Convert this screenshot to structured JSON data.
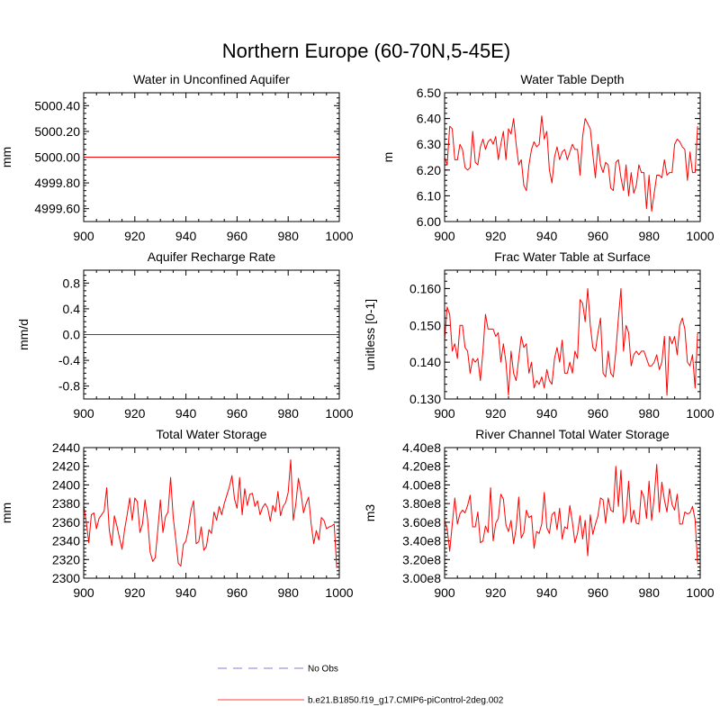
{
  "figure": {
    "title": "Northern Europe (60-70N,5-45E)"
  },
  "colors": {
    "series": "#ff0000",
    "obs": "#9999dd",
    "axis": "#000000"
  },
  "legend": {
    "entries": [
      {
        "label": "No Obs",
        "style": "dashed"
      },
      {
        "label": "b.e21.B1850.f19_g17.CMIP6-piControl-2deg.002",
        "style": "solid"
      }
    ]
  },
  "chart_data": [
    {
      "type": "line",
      "title": "Water in Unconfined Aquifer",
      "xlabel": "",
      "ylabel": "mm",
      "xlim": [
        900,
        1000
      ],
      "ylim": [
        4999.5,
        5000.5
      ],
      "xticks": [
        "900",
        "920",
        "940",
        "960",
        "980",
        "1000"
      ],
      "yticks": [
        "4999.60",
        "4999.80",
        "5000.00",
        "5000.20",
        "5000.40"
      ],
      "ytick_values": [
        4999.6,
        4999.8,
        5000.0,
        5000.2,
        5000.4
      ],
      "x_start": 900,
      "series": [
        {
          "name": "b.e21.B1850.f19_g17.CMIP6-piControl-2deg.002",
          "constant": 5000.0,
          "x_end": 1000
        }
      ]
    },
    {
      "type": "line",
      "title": "Water Table Depth",
      "xlabel": "",
      "ylabel": "m",
      "xlim": [
        900,
        1000
      ],
      "ylim": [
        6.0,
        6.5
      ],
      "xticks": [
        "900",
        "920",
        "940",
        "960",
        "980",
        "1000"
      ],
      "yticks": [
        "6.00",
        "6.10",
        "6.20",
        "6.30",
        "6.40",
        "6.50"
      ],
      "ytick_values": [
        6.0,
        6.1,
        6.2,
        6.3,
        6.4,
        6.5
      ],
      "x_start": 900,
      "series": [
        {
          "name": "b.e21.B1850.f19_g17.CMIP6-piControl-2deg.002",
          "values": [
            6.25,
            6.22,
            6.37,
            6.36,
            6.24,
            6.24,
            6.3,
            6.28,
            6.21,
            6.2,
            6.21,
            6.35,
            6.23,
            6.22,
            6.29,
            6.32,
            6.28,
            6.31,
            6.32,
            6.3,
            6.33,
            6.24,
            6.3,
            6.35,
            6.24,
            6.36,
            6.34,
            6.4,
            6.3,
            6.22,
            6.24,
            6.14,
            6.12,
            6.22,
            6.28,
            6.31,
            6.29,
            6.3,
            6.41,
            6.32,
            6.35,
            6.2,
            6.15,
            6.25,
            6.29,
            6.24,
            6.27,
            6.28,
            6.24,
            6.27,
            6.3,
            6.28,
            6.28,
            6.18,
            6.33,
            6.4,
            6.38,
            6.36,
            6.26,
            6.17,
            6.3,
            6.22,
            6.19,
            6.23,
            6.22,
            6.13,
            6.12,
            6.23,
            6.24,
            6.17,
            6.12,
            6.22,
            6.1,
            6.19,
            6.11,
            6.14,
            6.22,
            6.19,
            6.19,
            6.05,
            6.18,
            6.04,
            6.11,
            6.18,
            6.18,
            6.17,
            6.24,
            6.18,
            6.19,
            6.19,
            6.3,
            6.32,
            6.31,
            6.29,
            6.28,
            6.16,
            6.27,
            6.19,
            6.19,
            6.37
          ]
        }
      ]
    },
    {
      "type": "line",
      "title": "Aquifer Recharge Rate",
      "xlabel": "",
      "ylabel": "mm/d",
      "xlim": [
        900,
        1000
      ],
      "ylim": [
        -1.0,
        1.0
      ],
      "xticks": [
        "900",
        "920",
        "940",
        "960",
        "980",
        "1000"
      ],
      "yticks": [
        "-0.8",
        "-0.4",
        "0.0",
        "0.4",
        "0.8"
      ],
      "ytick_values": [
        -0.8,
        -0.4,
        0.0,
        0.4,
        0.8
      ],
      "x_start": 900,
      "series": [
        {
          "name": "b.e21.B1850.f19_g17.CMIP6-piControl-2deg.002",
          "constant": 0.0,
          "x_end": 1000
        }
      ]
    },
    {
      "type": "line",
      "title": "Frac Water Table at Surface",
      "xlabel": "",
      "ylabel": "unitless [0-1]",
      "xlim": [
        900,
        1000
      ],
      "ylim": [
        0.13,
        0.165
      ],
      "xticks": [
        "900",
        "920",
        "940",
        "960",
        "980",
        "1000"
      ],
      "yticks": [
        "0.130",
        "0.140",
        "0.150",
        "0.160"
      ],
      "ytick_values": [
        0.13,
        0.14,
        0.15,
        0.16
      ],
      "x_start": 900,
      "series": [
        {
          "name": "b.e21.B1850.f19_g17.CMIP6-piControl-2deg.002",
          "values": [
            0.146,
            0.155,
            0.153,
            0.143,
            0.145,
            0.141,
            0.15,
            0.15,
            0.144,
            0.143,
            0.137,
            0.141,
            0.14,
            0.141,
            0.135,
            0.143,
            0.153,
            0.149,
            0.149,
            0.149,
            0.147,
            0.148,
            0.14,
            0.145,
            0.14,
            0.131,
            0.143,
            0.137,
            0.135,
            0.141,
            0.147,
            0.144,
            0.145,
            0.137,
            0.14,
            0.133,
            0.135,
            0.134,
            0.136,
            0.133,
            0.138,
            0.135,
            0.134,
            0.141,
            0.144,
            0.14,
            0.146,
            0.137,
            0.137,
            0.14,
            0.137,
            0.143,
            0.141,
            0.157,
            0.156,
            0.151,
            0.16,
            0.15,
            0.144,
            0.143,
            0.148,
            0.152,
            0.137,
            0.136,
            0.143,
            0.137,
            0.136,
            0.143,
            0.152,
            0.16,
            0.143,
            0.15,
            0.148,
            0.139,
            0.142,
            0.143,
            0.142,
            0.143,
            0.143,
            0.141,
            0.139,
            0.139,
            0.14,
            0.142,
            0.138,
            0.14,
            0.147,
            0.131,
            0.147,
            0.145,
            0.147,
            0.142,
            0.15,
            0.152,
            0.149,
            0.14,
            0.139,
            0.142,
            0.133,
            0.148
          ]
        }
      ]
    },
    {
      "type": "line",
      "title": "Total Water Storage",
      "xlabel": "",
      "ylabel": "mm",
      "xlim": [
        900,
        1000
      ],
      "ylim": [
        2300,
        2440
      ],
      "xticks": [
        "900",
        "920",
        "940",
        "960",
        "980",
        "1000"
      ],
      "yticks": [
        "2300",
        "2320",
        "2340",
        "2360",
        "2380",
        "2400",
        "2420",
        "2440"
      ],
      "ytick_values": [
        2300,
        2320,
        2340,
        2360,
        2380,
        2400,
        2420,
        2440
      ],
      "x_start": 900,
      "series": [
        {
          "name": "b.e21.B1850.f19_g17.CMIP6-piControl-2deg.002",
          "values": [
            2378,
            2360,
            2338,
            2368,
            2370,
            2353,
            2364,
            2368,
            2372,
            2397,
            2352,
            2335,
            2367,
            2356,
            2343,
            2331,
            2352,
            2368,
            2386,
            2362,
            2386,
            2382,
            2349,
            2358,
            2384,
            2363,
            2328,
            2318,
            2322,
            2352,
            2384,
            2349,
            2366,
            2371,
            2408,
            2366,
            2342,
            2316,
            2313,
            2336,
            2340,
            2354,
            2373,
            2383,
            2337,
            2339,
            2355,
            2330,
            2334,
            2352,
            2348,
            2371,
            2362,
            2377,
            2368,
            2380,
            2389,
            2398,
            2410,
            2385,
            2375,
            2408,
            2368,
            2396,
            2378,
            2390,
            2391,
            2377,
            2383,
            2368,
            2376,
            2380,
            2375,
            2361,
            2378,
            2371,
            2393,
            2367,
            2377,
            2381,
            2392,
            2427,
            2362,
            2380,
            2407,
            2392,
            2370,
            2380,
            2387,
            2358,
            2337,
            2351,
            2341,
            2365,
            2362,
            2353,
            2355,
            2356,
            2358,
            2311
          ]
        }
      ]
    },
    {
      "type": "line",
      "title": "River Channel Total Water Storage",
      "xlabel": "",
      "ylabel": "m3",
      "xlim": [
        900,
        1000
      ],
      "ylim": [
        300000000.0,
        440000000.0
      ],
      "xticks": [
        "900",
        "920",
        "940",
        "960",
        "980",
        "1000"
      ],
      "yticks": [
        "3.00e8",
        "3.20e8",
        "3.40e8",
        "3.60e8",
        "3.80e8",
        "4.00e8",
        "4.20e8",
        "4.40e8"
      ],
      "ytick_values": [
        300000000.0,
        320000000.0,
        340000000.0,
        360000000.0,
        380000000.0,
        400000000.0,
        420000000.0,
        440000000.0
      ],
      "x_start": 900,
      "series": [
        {
          "name": "b.e21.B1850.f19_g17.CMIP6-piControl-2deg.002",
          "values": [
            362000000.0,
            353000000.0,
            329000000.0,
            358000000.0,
            386000000.0,
            358000000.0,
            369000000.0,
            373000000.0,
            370000000.0,
            378000000.0,
            389000000.0,
            355000000.0,
            355000000.0,
            371000000.0,
            338000000.0,
            340000000.0,
            356000000.0,
            349000000.0,
            397000000.0,
            340000000.0,
            359000000.0,
            364000000.0,
            390000000.0,
            385000000.0,
            357000000.0,
            350000000.0,
            362000000.0,
            337000000.0,
            354000000.0,
            387000000.0,
            343000000.0,
            349000000.0,
            373000000.0,
            365000000.0,
            367000000.0,
            332000000.0,
            350000000.0,
            348000000.0,
            358000000.0,
            392000000.0,
            354000000.0,
            348000000.0,
            368000000.0,
            371000000.0,
            352000000.0,
            375000000.0,
            342000000.0,
            355000000.0,
            353000000.0,
            378000000.0,
            360000000.0,
            338000000.0,
            348000000.0,
            367000000.0,
            342000000.0,
            362000000.0,
            324000000.0,
            368000000.0,
            347000000.0,
            358000000.0,
            367000000.0,
            386000000.0,
            384000000.0,
            359000000.0,
            386000000.0,
            373000000.0,
            371000000.0,
            420000000.0,
            377000000.0,
            416000000.0,
            359000000.0,
            368000000.0,
            404000000.0,
            360000000.0,
            373000000.0,
            359000000.0,
            358000000.0,
            394000000.0,
            387000000.0,
            364000000.0,
            404000000.0,
            362000000.0,
            387000000.0,
            422000000.0,
            371000000.0,
            403000000.0,
            384000000.0,
            371000000.0,
            396000000.0,
            379000000.0,
            373000000.0,
            390000000.0,
            358000000.0,
            358000000.0,
            371000000.0,
            369000000.0,
            370000000.0,
            377000000.0,
            363000000.0,
            315000000.0
          ]
        }
      ]
    }
  ]
}
